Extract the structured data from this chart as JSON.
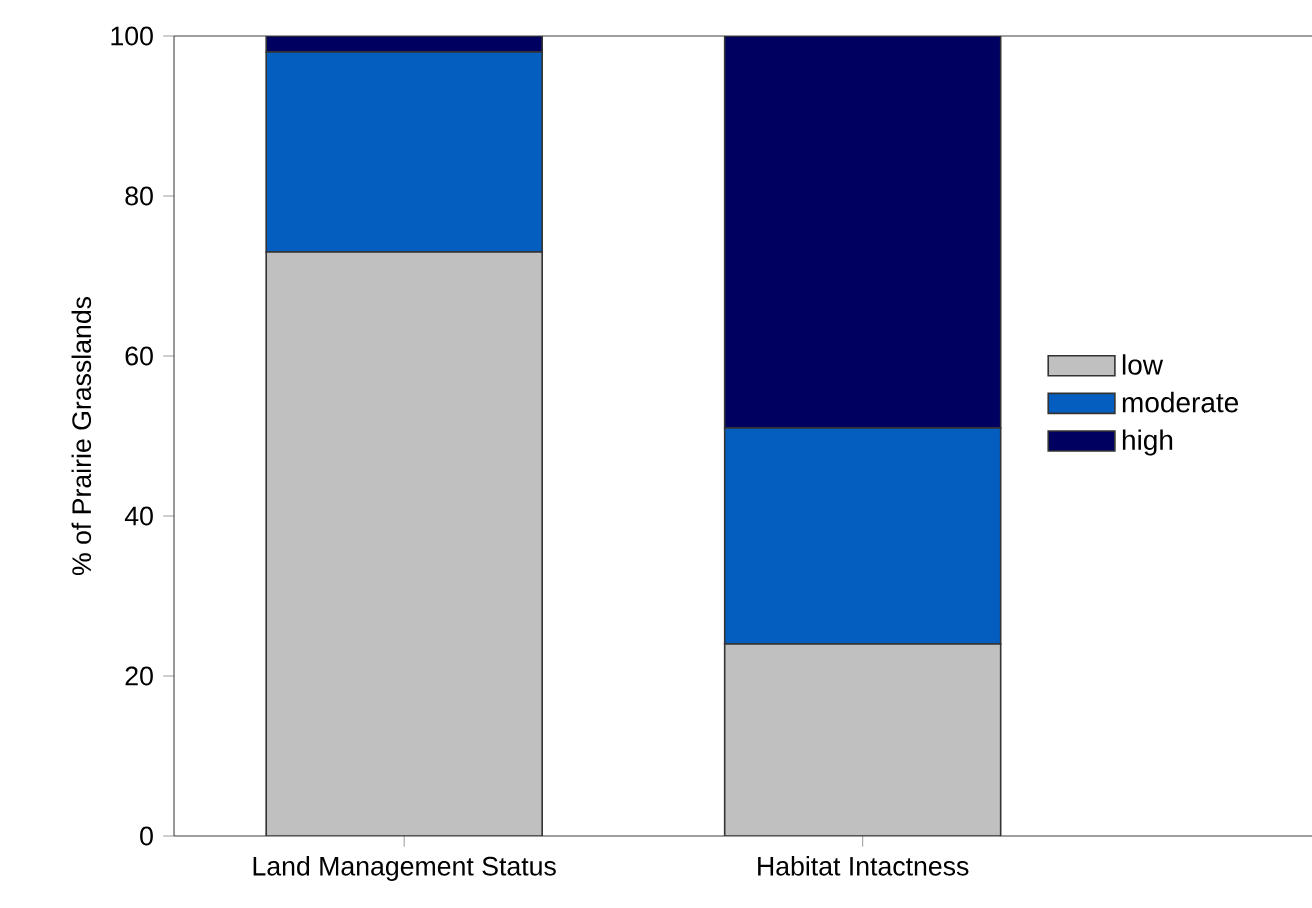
{
  "chart_data": {
    "type": "bar",
    "stacked": true,
    "ylabel": "% of Prairie Grasslands",
    "categories": [
      "Land Management Status",
      "Habitat Intactness"
    ],
    "series": [
      {
        "name": "low",
        "color": "#c0c0c0",
        "values": [
          73,
          24
        ]
      },
      {
        "name": "moderate",
        "color": "#045ebf",
        "values": [
          25,
          27
        ]
      },
      {
        "name": "high",
        "color": "#000060",
        "values": [
          2,
          49
        ]
      }
    ],
    "ylim": [
      0,
      100
    ],
    "yticks": [
      0,
      20,
      40,
      60,
      80,
      100
    ],
    "legend": "right"
  }
}
